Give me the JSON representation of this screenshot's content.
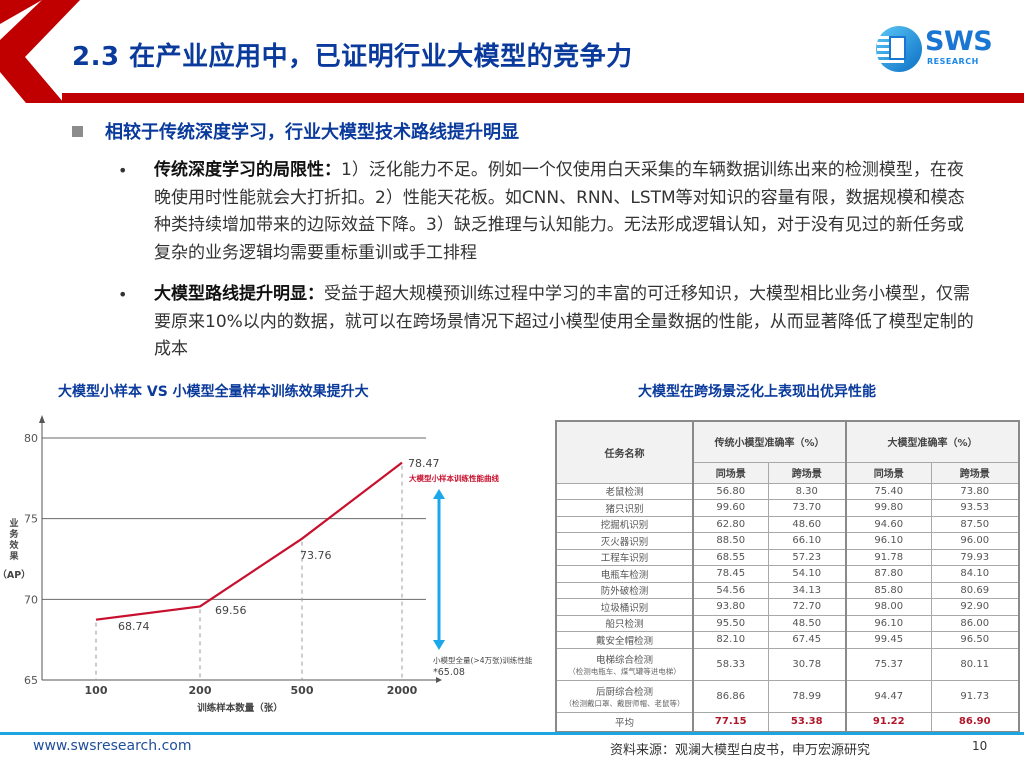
{
  "header": {
    "title": "2.3 在产业应用中，已证明行业大模型的竞争力",
    "logo": {
      "word": "SWS",
      "sub": "RESEARCH",
      "icon": "sws-globe-logo-icon"
    },
    "colors": {
      "accent_red": "#c00000",
      "title_blue": "#0a3a9c",
      "logo_blue": "#1976d2"
    }
  },
  "section": {
    "heading": "相较于传统深度学习，行业大模型技术路线提升明显",
    "bullets": [
      {
        "lead": "传统深度学习的局限性：",
        "text": "1）泛化能力不足。例如一个仅使用白天采集的车辆数据训练出来的检测模型，在夜晚使用时性能就会大打折扣。2）性能天花板。如CNN、RNN、LSTM等对知识的容量有限，数据规模和模态种类持续增加带来的边际效益下降。3）缺乏推理与认知能力。无法形成逻辑认知，对于没有见过的新任务或复杂的业务逻辑均需要重标重训或手工排程"
      },
      {
        "lead": "大模型路线提升明显：",
        "text": "受益于超大规模预训练过程中学习的丰富的可迁移知识，大模型相比业务小模型，仅需要原来10%以内的数据，就可以在跨场景情况下超过小模型使用全量数据的性能，从而显著降低了模型定制的成本"
      }
    ]
  },
  "left_panel": {
    "title": "大模型小样本 VS 小模型全量样本训练效果提升大"
  },
  "right_panel": {
    "title": "大模型在跨场景泛化上表现出优异性能"
  },
  "chart_data": {
    "type": "line",
    "title": "大模型小样本 VS 小模型全量样本训练效果提升大",
    "xlabel": "训练样本数量（张）",
    "ylabel": "业务效果（AP）",
    "ylabel_parts": [
      "业",
      "务",
      "效",
      "果",
      "（AP）"
    ],
    "categories": [
      "100",
      "200",
      "500",
      "2000"
    ],
    "series": [
      {
        "name": "大模型小样本训练性能曲线",
        "values": [
          68.74,
          69.56,
          73.76,
          78.47
        ],
        "color": "#c8102e"
      }
    ],
    "value_labels": [
      "68.74",
      "69.56",
      "73.76",
      "78.47"
    ],
    "reference": {
      "label": "小模型全量(>4万张)训练性能",
      "value": 65.08,
      "value_label": "*65.08",
      "arrow_color": "#1aa8ea"
    },
    "yticks": [
      65,
      70,
      75,
      80
    ],
    "ytick_labels": [
      "65",
      "70",
      "75",
      "80"
    ],
    "ylim": [
      65,
      80
    ],
    "grid": true,
    "legend_position": "annotation near last point"
  },
  "table": {
    "headers": {
      "task": "任务名称",
      "group1": "传统小模型准确率（%）",
      "group2": "大模型准确率（%）",
      "sub": [
        "同场景",
        "跨场景",
        "同场景",
        "跨场景"
      ]
    },
    "rows": [
      {
        "name": "老鼠检测",
        "note": "",
        "values": [
          "56.80",
          "8.30",
          "75.40",
          "73.80"
        ]
      },
      {
        "name": "猪只识别",
        "note": "",
        "values": [
          "99.60",
          "73.70",
          "99.80",
          "93.53"
        ]
      },
      {
        "name": "挖掘机识别",
        "note": "",
        "values": [
          "62.80",
          "48.60",
          "94.60",
          "87.50"
        ]
      },
      {
        "name": "灭火器识别",
        "note": "",
        "values": [
          "88.50",
          "66.10",
          "96.10",
          "96.00"
        ]
      },
      {
        "name": "工程车识别",
        "note": "",
        "values": [
          "68.55",
          "57.23",
          "91.78",
          "79.93"
        ]
      },
      {
        "name": "电瓶车检测",
        "note": "",
        "values": [
          "78.45",
          "54.10",
          "87.80",
          "84.10"
        ]
      },
      {
        "name": "防外破检测",
        "note": "",
        "values": [
          "54.56",
          "34.13",
          "85.80",
          "80.69"
        ]
      },
      {
        "name": "垃圾桶识别",
        "note": "",
        "values": [
          "93.80",
          "72.70",
          "98.00",
          "92.90"
        ]
      },
      {
        "name": "船只检测",
        "note": "",
        "values": [
          "95.50",
          "48.50",
          "96.10",
          "86.00"
        ]
      },
      {
        "name": "戴安全帽检测",
        "note": "",
        "values": [
          "82.10",
          "67.45",
          "99.45",
          "96.50"
        ]
      },
      {
        "name": "电梯综合检测",
        "note": "（检测电瓶车、煤气罐等进电梯）",
        "values": [
          "58.33",
          "30.78",
          "75.37",
          "80.11"
        ]
      },
      {
        "name": "后厨综合检测",
        "note": "（检测戴口罩、戴厨师帽、老鼠等）",
        "values": [
          "86.86",
          "78.99",
          "94.47",
          "91.73"
        ]
      }
    ],
    "average": {
      "name": "平均",
      "values": [
        "77.15",
        "53.38",
        "91.22",
        "86.90"
      ],
      "color": "#b0172a"
    }
  },
  "footer": {
    "url": "www.swsresearch.com",
    "source": "资料来源：观澜大模型白皮书，申万宏源研究",
    "page": "10"
  }
}
